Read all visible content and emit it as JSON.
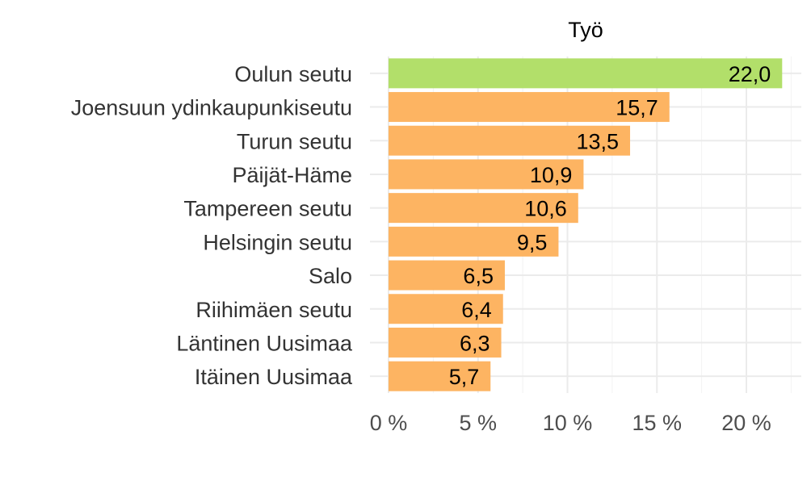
{
  "chart_data": {
    "type": "bar",
    "orientation": "horizontal",
    "title": "Työ",
    "categories": [
      "Oulun seutu",
      "Joensuun ydinkaupunkiseutu",
      "Turun seutu",
      "Päijät-Häme",
      "Tampereen seutu",
      "Helsingin seutu",
      "Salo",
      "Riihimäen seutu",
      "Läntinen Uusimaa",
      "Itäinen Uusimaa"
    ],
    "values": [
      22.0,
      15.7,
      13.5,
      10.9,
      10.6,
      9.5,
      6.5,
      6.4,
      6.3,
      5.7
    ],
    "value_labels": [
      "22,0",
      "15,7",
      "13,5",
      "10,9",
      "10,6",
      "9,5",
      "6,5",
      "6,4",
      "6,3",
      "5,7"
    ],
    "xticks": [
      0,
      5,
      10,
      15,
      20
    ],
    "xtick_labels": [
      "0 %",
      "5 %",
      "10 %",
      "15 %",
      "20 %"
    ],
    "xlim": [
      0,
      22.5
    ],
    "xlabel": "",
    "ylabel": "",
    "grid": true,
    "colors": {
      "highlight": "#b2df6a",
      "default": "#fdb462"
    },
    "highlight_category": "Oulun seutu"
  }
}
